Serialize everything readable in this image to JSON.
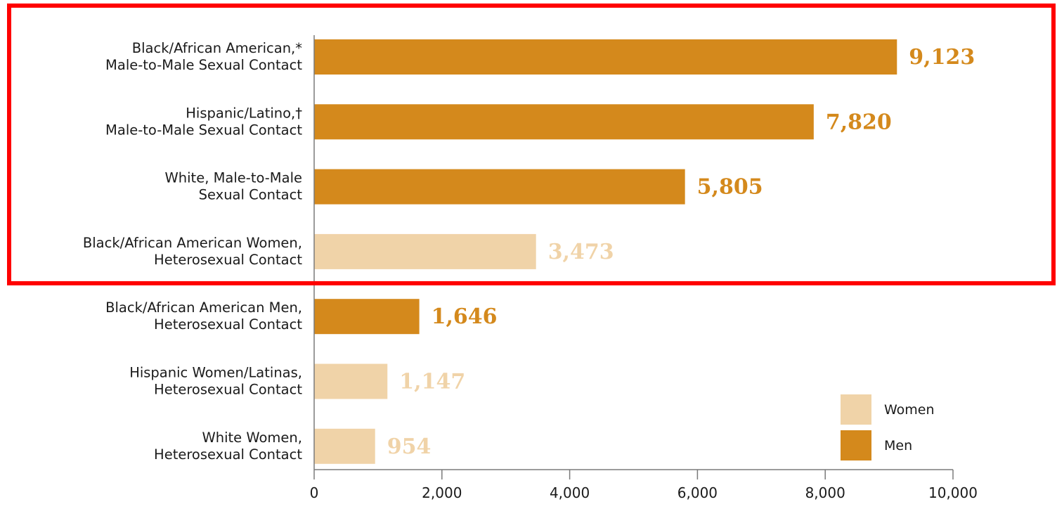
{
  "chart_data": {
    "type": "bar",
    "orientation": "horizontal",
    "categories": [
      [
        "Black/African American,*",
        "Male-to-Male Sexual Contact"
      ],
      [
        "Hispanic/Latino,†",
        "Male-to-Male Sexual Contact"
      ],
      [
        "White, Male-to-Male",
        "Sexual Contact"
      ],
      [
        "Black/African American Women,",
        "Heterosexual Contact"
      ],
      [
        "Black/African American Men,",
        "Heterosexual Contact"
      ],
      [
        "Hispanic Women/Latinas,",
        "Heterosexual Contact"
      ],
      [
        "White Women,",
        "Heterosexual Contact"
      ]
    ],
    "values": [
      9123,
      7820,
      5805,
      3473,
      1646,
      1147,
      954
    ],
    "value_labels": [
      "9,123",
      "7,820",
      "5,805",
      "3,473",
      "1,646",
      "1,147",
      "954"
    ],
    "groups": [
      "Men",
      "Men",
      "Men",
      "Women",
      "Men",
      "Women",
      "Women"
    ],
    "xlim": [
      0,
      10000
    ],
    "xticks": [
      0,
      2000,
      4000,
      6000,
      8000,
      10000
    ],
    "xtick_labels": [
      "0",
      "2,000",
      "4,000",
      "6,000",
      "8,000",
      "10,000"
    ],
    "legend": [
      {
        "name": "Women",
        "color": "#f0d3a8"
      },
      {
        "name": "Men",
        "color": "#d4891c"
      }
    ],
    "legend_position": "bottom-right",
    "highlight_box": {
      "color": "#ff0000",
      "covers_categories": 4
    },
    "title": "",
    "xlabel": "",
    "ylabel": "",
    "grid": false
  }
}
